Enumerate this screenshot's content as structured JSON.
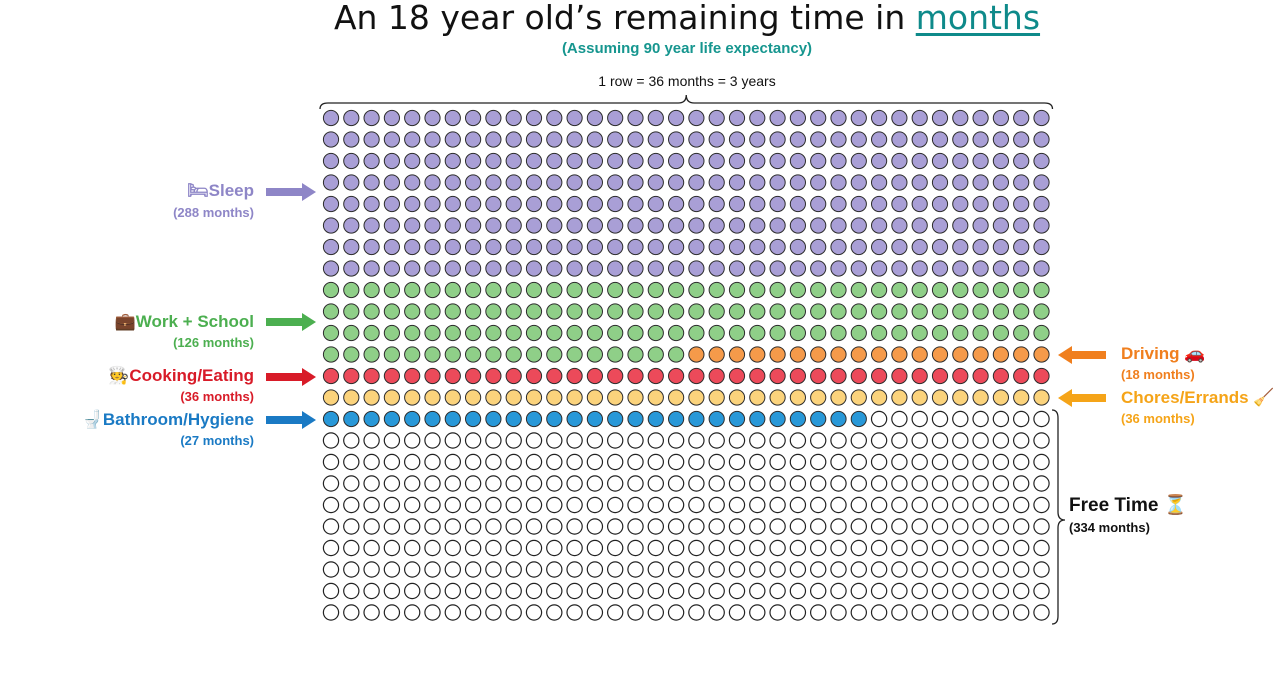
{
  "header": {
    "title_prefix": "An 18 year old’s remaining time in ",
    "title_link": "months",
    "subtitle": "(Assuming 90 year life expectancy)",
    "scale_note": "1 row = 36 months = 3 years"
  },
  "grid": {
    "columns": 36,
    "rows": 24,
    "total_months": 864
  },
  "categories": [
    {
      "key": "sleep",
      "label": "Sleep",
      "icon": "🛏",
      "months_label": "(288 months)",
      "months": 288,
      "color": "#8e86c7",
      "fill": "#a99fd6",
      "side": "left"
    },
    {
      "key": "work",
      "label": "Work + School",
      "icon": "💼",
      "months_label": "(126 months)",
      "months": 126,
      "color": "#4caf50",
      "fill": "#8fcf88",
      "side": "left"
    },
    {
      "key": "driving",
      "label": "Driving",
      "icon": "🚗",
      "months_label": "(18 months)",
      "months": 18,
      "color": "#f07f1e",
      "fill": "#f59a4a",
      "side": "right"
    },
    {
      "key": "cooking",
      "label": "Cooking/Eating",
      "icon": "🧑‍🍳",
      "months_label": "(36 months)",
      "months": 36,
      "color": "#d81b28",
      "fill": "#ec4a5a",
      "side": "left"
    },
    {
      "key": "chores",
      "label": "Chores/Errands",
      "icon": "🧹",
      "months_label": "(36 months)",
      "months": 36,
      "color": "#f5a418",
      "fill": "#fbd37c",
      "side": "right"
    },
    {
      "key": "bathroom",
      "label": "Bathroom/Hygiene",
      "icon": "🚽",
      "months_label": "(27 months)",
      "months": 27,
      "color": "#1a7ac4",
      "fill": "#2898d8",
      "side": "left"
    },
    {
      "key": "free",
      "label": "Free Time",
      "icon": "⏳",
      "months_label": "(334 months)",
      "months": 334,
      "color": "#111111",
      "fill": "#ffffff",
      "side": "right"
    }
  ]
}
